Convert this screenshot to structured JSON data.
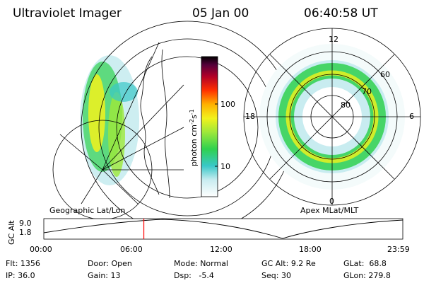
{
  "header": {
    "instrument": "Ultraviolet Imager",
    "date": "05 Jan 00",
    "time": "06:40:58 UT"
  },
  "geo_panel": {
    "label": "Geographic Lat/Lon"
  },
  "apex_panel": {
    "label": "Apex  MLat/MLT",
    "mlt_labels": {
      "top": "12",
      "left": "18",
      "right": "6",
      "bottom": "0"
    },
    "mlat_labels": [
      "60",
      "70",
      "80"
    ]
  },
  "colorbar": {
    "unit": "photon cm",
    "unit_sup1": "-2",
    "unit_mid": "s",
    "unit_sup2": "-1",
    "ticks": [
      {
        "label": "100",
        "value": 100
      },
      {
        "label": "10",
        "value": 10
      }
    ],
    "scale": "log",
    "colors": [
      "#ffffff",
      "#c8ecf0",
      "#39c8c8",
      "#2fd14f",
      "#9ee83a",
      "#f2f21c",
      "#ffb000",
      "#ff3000",
      "#b00028",
      "#55003a",
      "#000000"
    ]
  },
  "timeline": {
    "ylabel": "GC Alt",
    "yticks": [
      "9.0",
      "1.8"
    ],
    "xticks": [
      "00:00",
      "06:00",
      "12:00",
      "18:00",
      "23:59"
    ],
    "marker_time": "06:40:58",
    "marker_color": "#ff0000"
  },
  "info": {
    "flt": {
      "label": "Flt:",
      "value": "1356"
    },
    "ip": {
      "label": "IP:",
      "value": "36.0"
    },
    "door": {
      "label": "Door:",
      "value": "Open"
    },
    "gain": {
      "label": "Gain:",
      "value": "13"
    },
    "mode": {
      "label": "Mode:",
      "value": "Normal"
    },
    "dsp": {
      "label": "Dsp:",
      "value": "-5.4"
    },
    "gcalt": {
      "label": "GC Alt:",
      "value": "9.2 Re"
    },
    "seq": {
      "label": "Seq:",
      "value": "30"
    },
    "glat": {
      "label": "GLat:",
      "value": "68.8"
    },
    "glon": {
      "label": "GLon:",
      "value": "279.8"
    }
  }
}
